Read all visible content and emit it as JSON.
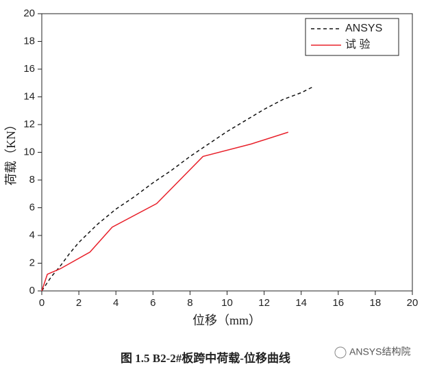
{
  "chart_data": {
    "type": "line",
    "title": "图 1.5 B2-2#板跨中荷载-位移曲线",
    "watermark": "ANSYS结构院",
    "x_label": "位移（mm）",
    "y_label": "荷载（KN）",
    "xlim": [
      0,
      20
    ],
    "xticks": [
      0,
      2,
      4,
      6,
      8,
      10,
      12,
      14,
      16,
      18,
      20
    ],
    "ylim": [
      0,
      20
    ],
    "yticks": [
      0,
      2,
      4,
      6,
      8,
      10,
      12,
      14,
      16,
      18,
      20
    ],
    "legend": "top-right",
    "series": [
      {
        "name": "ANSYS",
        "color": "#111111",
        "dashed": true,
        "x": [
          0,
          0.5,
          1,
          1.5,
          2,
          3,
          4,
          5,
          6,
          7,
          8,
          9,
          10,
          11,
          12,
          13,
          14,
          14.6
        ],
        "values": [
          0,
          1,
          1.8,
          2.7,
          3.5,
          4.8,
          5.9,
          6.8,
          7.8,
          8.7,
          9.7,
          10.6,
          11.5,
          12.3,
          13.1,
          13.8,
          14.3,
          14.7
        ]
      },
      {
        "name": "试    验",
        "color": "#e8202a",
        "dashed": false,
        "x": [
          0,
          0.3,
          1,
          2.6,
          3.8,
          6.2,
          8.7,
          11.3,
          13.3
        ],
        "values": [
          0,
          1.2,
          1.6,
          2.8,
          4.6,
          6.3,
          9.7,
          10.6,
          11.45
        ]
      }
    ]
  }
}
